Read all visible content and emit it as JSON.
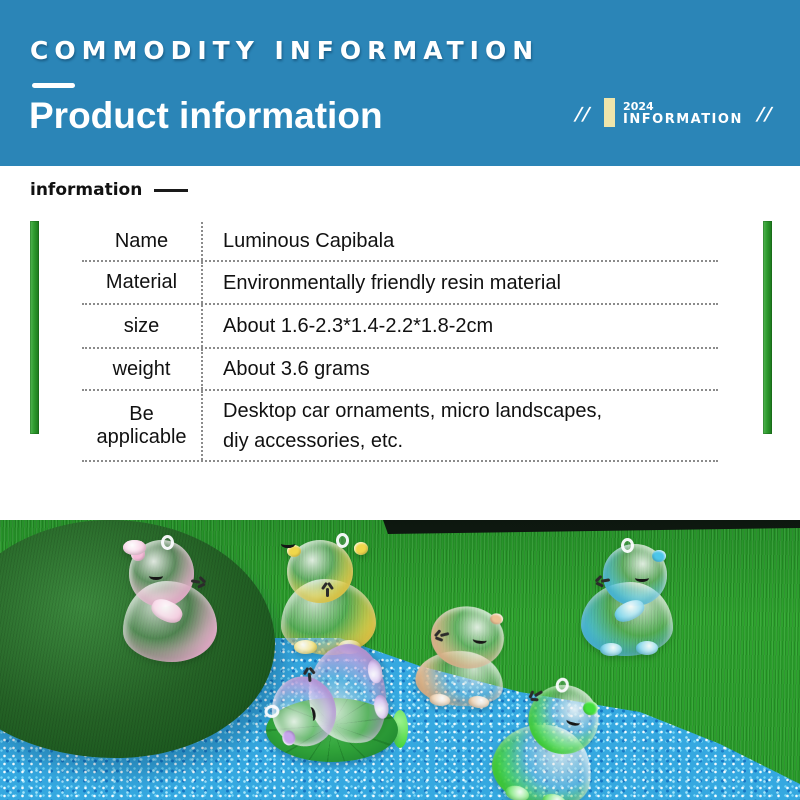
{
  "header": {
    "kicker": "COMMODITY INFORMATION",
    "title": "Product information",
    "badge": {
      "slash_left": "//",
      "year": "2024",
      "label": "INFORMATION",
      "slash_right": "//"
    },
    "colors": {
      "background": "#2b85b7",
      "accent_bar": "#eee5ab"
    }
  },
  "section": {
    "label": "information"
  },
  "info_table": {
    "accent_color": "#2e9b2e",
    "rows": [
      {
        "label": "Name",
        "value": "Luminous Capibala"
      },
      {
        "label": "Material",
        "value": "Environmentally friendly resin material"
      },
      {
        "label": "size",
        "value": "About 1.6-2.3*1.4-2.2*1.8-2cm"
      },
      {
        "label": "weight",
        "value": "About 3.6 grams"
      },
      {
        "label": "Be applicable",
        "value": "Desktop car ornaments, micro landscapes,\ndiy accessories, etc."
      }
    ]
  },
  "photo": {
    "figures": [
      {
        "name": "pink-capybara",
        "color": "#f6bcd9"
      },
      {
        "name": "yellow-capybara",
        "color": "#f0d74b"
      },
      {
        "name": "purple-capybara",
        "color": "#c7a5ec"
      },
      {
        "name": "tan-capybara",
        "color": "#ecc193"
      },
      {
        "name": "blue-capybara",
        "color": "#4cc6e9"
      },
      {
        "name": "green-capybara",
        "color": "#43e03c"
      }
    ],
    "colors": {
      "grass": "#2ea32e",
      "gravel": "#35a8e0",
      "moss": "#1d5a20",
      "leaf": "#2fa138"
    }
  }
}
